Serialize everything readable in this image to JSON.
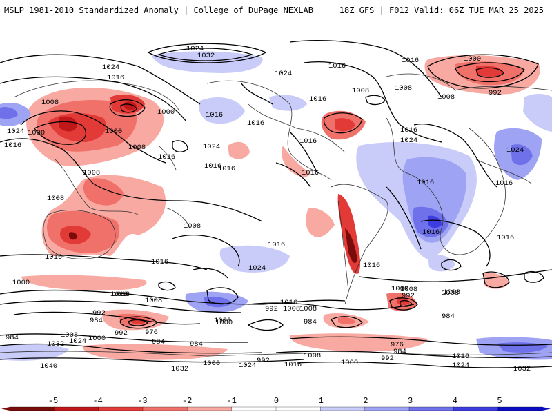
{
  "header": {
    "left_title": "MSLP 1981-2010 Standardized Anomaly | College of DuPage NEXLAB",
    "right_title": "18Z GFS | F012 Valid: 06Z TUE MAR 25 2025"
  },
  "map": {
    "isobar_labels": [
      {
        "text": "1024"
      },
      {
        "text": "1032"
      },
      {
        "text": "1024"
      },
      {
        "text": "1016"
      },
      {
        "text": "1008"
      },
      {
        "text": "1000"
      },
      {
        "text": "1000"
      },
      {
        "text": "1000"
      },
      {
        "text": "1024"
      },
      {
        "text": "1016"
      },
      {
        "text": "1008"
      },
      {
        "text": "1016"
      },
      {
        "text": "1024"
      },
      {
        "text": "1016"
      },
      {
        "text": "1016"
      },
      {
        "text": "1008"
      },
      {
        "text": "1008"
      },
      {
        "text": "1016"
      },
      {
        "text": "1008"
      },
      {
        "text": "1016"
      },
      {
        "text": "1016"
      },
      {
        "text": "1024"
      },
      {
        "text": "1016"
      },
      {
        "text": "1008"
      },
      {
        "text": "1016"
      },
      {
        "text": "1008"
      },
      {
        "text": "1016"
      },
      {
        "text": "1016"
      },
      {
        "text": "1008"
      },
      {
        "text": "1016"
      },
      {
        "text": "1000"
      },
      {
        "text": "992"
      },
      {
        "text": "1024"
      },
      {
        "text": "1016"
      },
      {
        "text": "1016"
      },
      {
        "text": "1024"
      },
      {
        "text": "1016"
      },
      {
        "text": "1016"
      },
      {
        "text": "1016"
      },
      {
        "text": "1016"
      },
      {
        "text": "1008"
      },
      {
        "text": "1000"
      },
      {
        "text": "992"
      },
      {
        "text": "984"
      },
      {
        "text": "976"
      },
      {
        "text": "992"
      },
      {
        "text": "984"
      },
      {
        "text": "1000"
      },
      {
        "text": "1024"
      },
      {
        "text": "1032"
      },
      {
        "text": "1040"
      },
      {
        "text": "1008"
      },
      {
        "text": "1000"
      },
      {
        "text": "1016"
      },
      {
        "text": "1008"
      },
      {
        "text": "1016"
      },
      {
        "text": "992"
      },
      {
        "text": "1008"
      },
      {
        "text": "984"
      },
      {
        "text": "984"
      },
      {
        "text": "992"
      },
      {
        "text": "1000"
      },
      {
        "text": "984"
      },
      {
        "text": "1016"
      },
      {
        "text": "1032"
      },
      {
        "text": "1024"
      },
      {
        "text": "1024"
      },
      {
        "text": "1032"
      },
      {
        "text": "1016"
      },
      {
        "text": "1008"
      },
      {
        "text": "1000"
      },
      {
        "text": "992"
      },
      {
        "text": "976"
      },
      {
        "text": "984"
      },
      {
        "text": "992"
      },
      {
        "text": "1000"
      },
      {
        "text": "1008"
      },
      {
        "text": "1016"
      },
      {
        "text": "1024"
      },
      {
        "text": "1008"
      },
      {
        "text": "984"
      },
      {
        "text": "1000"
      },
      {
        "text": "1008"
      },
      {
        "text": "1016"
      },
      {
        "text": "1016"
      }
    ],
    "anomaly_palette": {
      "neg5": "#7a0b0b",
      "neg4": "#c01818",
      "neg3": "#e23a36",
      "neg2": "#f0716a",
      "neg1": "#f8aaa2",
      "zero": "#ffffff",
      "pos1": "#c9ccf8",
      "pos2": "#9fa3f3",
      "pos3": "#6e71ea",
      "pos4": "#3c3ce0",
      "pos5": "#0c0cc4"
    }
  },
  "colorbar": {
    "tick_labels": [
      "-5",
      "-4",
      "-3",
      "-2",
      "-1",
      "0",
      "1",
      "2",
      "3",
      "4",
      "5"
    ],
    "colors": [
      "#7a0b0b",
      "#c01818",
      "#e23a36",
      "#f0716a",
      "#f8aaa2",
      "#ffffff",
      "#ffffff",
      "#c9ccf8",
      "#9fa3f3",
      "#6e71ea",
      "#3c3ce0",
      "#0c0cc4"
    ]
  }
}
